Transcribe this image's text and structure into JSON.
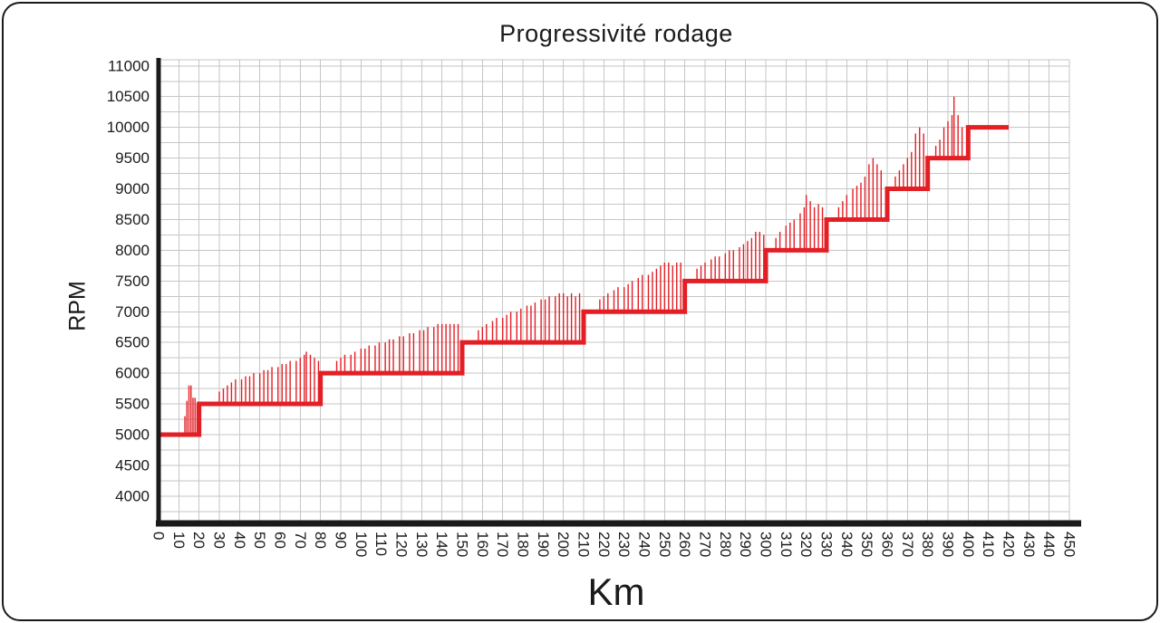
{
  "chart_data": {
    "type": "line",
    "title": "Progressivité rodage",
    "xlabel": "Km",
    "ylabel": "RPM",
    "xlim": [
      0,
      450
    ],
    "ylim": [
      3600,
      11100
    ],
    "x_ticks": [
      0,
      10,
      20,
      30,
      40,
      50,
      60,
      70,
      80,
      90,
      100,
      110,
      120,
      130,
      140,
      150,
      160,
      170,
      180,
      190,
      200,
      210,
      220,
      230,
      240,
      250,
      260,
      270,
      280,
      290,
      300,
      310,
      320,
      330,
      340,
      350,
      360,
      370,
      380,
      390,
      400,
      410,
      420,
      430,
      440,
      450
    ],
    "y_ticks": [
      11000,
      10500,
      10000,
      9500,
      9000,
      8500,
      8000,
      7500,
      7000,
      6500,
      6000,
      5500,
      5000,
      4500,
      4000
    ],
    "grid": {
      "on": true,
      "x_step": 10,
      "y_step": 250,
      "color": "#c6c6c6"
    },
    "legend": "none",
    "line_color": "#e31e25",
    "axis_color": "#1a1a1a",
    "steps": [
      {
        "from": 0,
        "to": 20,
        "rpm": 5000
      },
      {
        "from": 20,
        "to": 80,
        "rpm": 5500
      },
      {
        "from": 80,
        "to": 150,
        "rpm": 6000
      },
      {
        "from": 150,
        "to": 210,
        "rpm": 6500
      },
      {
        "from": 210,
        "to": 260,
        "rpm": 7000
      },
      {
        "from": 260,
        "to": 300,
        "rpm": 7500
      },
      {
        "from": 300,
        "to": 330,
        "rpm": 8000
      },
      {
        "from": 330,
        "to": 360,
        "rpm": 8500
      },
      {
        "from": 360,
        "to": 380,
        "rpm": 9000
      },
      {
        "from": 380,
        "to": 400,
        "rpm": 9500
      },
      {
        "from": 400,
        "to": 420,
        "rpm": 10000
      }
    ],
    "spikes": [
      [
        13,
        5300
      ],
      [
        14,
        5550
      ],
      [
        15,
        5800
      ],
      [
        16,
        5800
      ],
      [
        17,
        5600
      ],
      [
        18,
        5600
      ],
      [
        19,
        5500
      ],
      [
        30,
        5700
      ],
      [
        32,
        5750
      ],
      [
        34,
        5800
      ],
      [
        36,
        5850
      ],
      [
        38,
        5900
      ],
      [
        41,
        5900
      ],
      [
        43,
        5950
      ],
      [
        45,
        5950
      ],
      [
        47,
        6000
      ],
      [
        50,
        6000
      ],
      [
        52,
        6050
      ],
      [
        54,
        6050
      ],
      [
        56,
        6100
      ],
      [
        59,
        6100
      ],
      [
        61,
        6150
      ],
      [
        63,
        6150
      ],
      [
        65,
        6200
      ],
      [
        68,
        6200
      ],
      [
        70,
        6250
      ],
      [
        72,
        6300
      ],
      [
        73,
        6350
      ],
      [
        75,
        6300
      ],
      [
        77,
        6250
      ],
      [
        79,
        6200
      ],
      [
        88,
        6200
      ],
      [
        90,
        6250
      ],
      [
        92,
        6300
      ],
      [
        95,
        6300
      ],
      [
        97,
        6350
      ],
      [
        100,
        6400
      ],
      [
        102,
        6400
      ],
      [
        104,
        6450
      ],
      [
        107,
        6450
      ],
      [
        109,
        6500
      ],
      [
        112,
        6500
      ],
      [
        114,
        6550
      ],
      [
        116,
        6550
      ],
      [
        119,
        6600
      ],
      [
        121,
        6600
      ],
      [
        124,
        6650
      ],
      [
        126,
        6650
      ],
      [
        129,
        6700
      ],
      [
        131,
        6700
      ],
      [
        133,
        6750
      ],
      [
        136,
        6750
      ],
      [
        138,
        6800
      ],
      [
        140,
        6800
      ],
      [
        142,
        6800
      ],
      [
        144,
        6800
      ],
      [
        146,
        6800
      ],
      [
        148,
        6800
      ],
      [
        158,
        6700
      ],
      [
        160,
        6750
      ],
      [
        162,
        6800
      ],
      [
        165,
        6850
      ],
      [
        167,
        6900
      ],
      [
        170,
        6900
      ],
      [
        172,
        6950
      ],
      [
        174,
        7000
      ],
      [
        177,
        7000
      ],
      [
        179,
        7050
      ],
      [
        182,
        7100
      ],
      [
        184,
        7100
      ],
      [
        186,
        7150
      ],
      [
        189,
        7200
      ],
      [
        191,
        7200
      ],
      [
        193,
        7250
      ],
      [
        196,
        7250
      ],
      [
        198,
        7300
      ],
      [
        200,
        7300
      ],
      [
        202,
        7250
      ],
      [
        204,
        7300
      ],
      [
        206,
        7250
      ],
      [
        208,
        7300
      ],
      [
        218,
        7200
      ],
      [
        220,
        7250
      ],
      [
        222,
        7300
      ],
      [
        225,
        7350
      ],
      [
        227,
        7400
      ],
      [
        230,
        7400
      ],
      [
        232,
        7450
      ],
      [
        234,
        7500
      ],
      [
        237,
        7550
      ],
      [
        239,
        7600
      ],
      [
        242,
        7600
      ],
      [
        244,
        7650
      ],
      [
        246,
        7700
      ],
      [
        248,
        7750
      ],
      [
        250,
        7800
      ],
      [
        252,
        7800
      ],
      [
        254,
        7750
      ],
      [
        256,
        7800
      ],
      [
        258,
        7800
      ],
      [
        266,
        7700
      ],
      [
        268,
        7750
      ],
      [
        270,
        7800
      ],
      [
        273,
        7850
      ],
      [
        275,
        7900
      ],
      [
        277,
        7900
      ],
      [
        280,
        7950
      ],
      [
        282,
        8000
      ],
      [
        284,
        8000
      ],
      [
        287,
        8050
      ],
      [
        289,
        8100
      ],
      [
        291,
        8150
      ],
      [
        293,
        8200
      ],
      [
        295,
        8300
      ],
      [
        297,
        8300
      ],
      [
        299,
        8250
      ],
      [
        305,
        8200
      ],
      [
        307,
        8300
      ],
      [
        310,
        8400
      ],
      [
        312,
        8450
      ],
      [
        314,
        8500
      ],
      [
        317,
        8600
      ],
      [
        319,
        8700
      ],
      [
        320,
        8900
      ],
      [
        322,
        8800
      ],
      [
        324,
        8700
      ],
      [
        326,
        8750
      ],
      [
        328,
        8700
      ],
      [
        336,
        8700
      ],
      [
        338,
        8800
      ],
      [
        340,
        8900
      ],
      [
        343,
        9000
      ],
      [
        345,
        9050
      ],
      [
        347,
        9100
      ],
      [
        349,
        9200
      ],
      [
        351,
        9400
      ],
      [
        353,
        9500
      ],
      [
        355,
        9400
      ],
      [
        357,
        9300
      ],
      [
        364,
        9200
      ],
      [
        366,
        9300
      ],
      [
        368,
        9400
      ],
      [
        370,
        9500
      ],
      [
        372,
        9600
      ],
      [
        374,
        9900
      ],
      [
        376,
        10000
      ],
      [
        378,
        9900
      ],
      [
        384,
        9700
      ],
      [
        386,
        9800
      ],
      [
        388,
        10000
      ],
      [
        390,
        10100
      ],
      [
        392,
        10200
      ],
      [
        393,
        10500
      ],
      [
        395,
        10200
      ],
      [
        397,
        10000
      ]
    ]
  }
}
